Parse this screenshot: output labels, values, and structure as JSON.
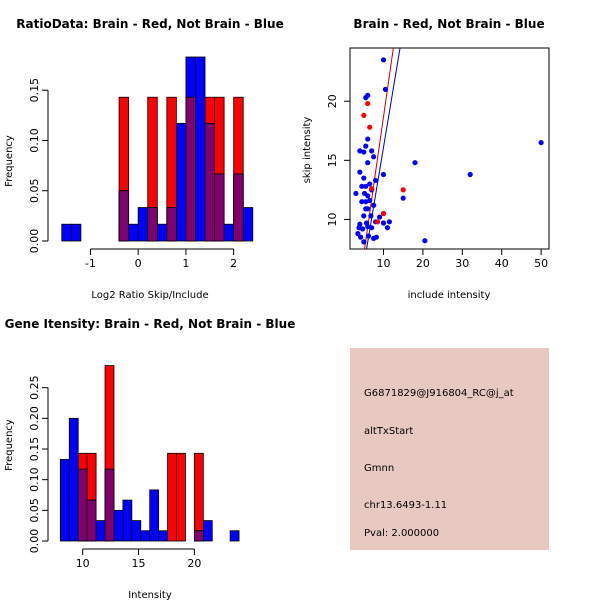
{
  "colors": {
    "red": "#ff0000",
    "blue": "#0000ff",
    "overlap": "#80006e",
    "panel_bg": "#e8c9c1",
    "pval": "#b00000",
    "line_red": "#cc0000",
    "line_blue": "#0000aa"
  },
  "chart_data": [
    {
      "type": "bar",
      "title": "RatioData: Brain - Red, Not Brain - Blue",
      "xlabel": "Log2 Ratio Skip/Include",
      "ylabel": "Frequency",
      "xlim": [
        -1.7,
        2.3
      ],
      "ylim": [
        0,
        0.183
      ],
      "xticks": [
        -1,
        0,
        1,
        2
      ],
      "yticks": [
        0.0,
        0.05,
        0.1,
        0.15
      ],
      "ytick_labels": [
        "0.00",
        "0.05",
        "0.10",
        "0.15"
      ],
      "bin_width": 0.2,
      "series": [
        {
          "name": "Brain",
          "color": "red",
          "bins": [
            {
              "x0": -0.4,
              "v": 0.143
            },
            {
              "x0": 0.2,
              "v": 0.143
            },
            {
              "x0": 0.6,
              "v": 0.143
            },
            {
              "x0": 1.0,
              "v": 0.143
            },
            {
              "x0": 1.4,
              "v": 0.143
            },
            {
              "x0": 1.6,
              "v": 0.143
            },
            {
              "x0": 2.0,
              "v": 0.143
            }
          ]
        },
        {
          "name": "Not Brain",
          "color": "blue",
          "bins": [
            {
              "x0": -1.6,
              "v": 0.0167
            },
            {
              "x0": -1.4,
              "v": 0.0167
            },
            {
              "x0": -0.4,
              "v": 0.05
            },
            {
              "x0": -0.2,
              "v": 0.0167
            },
            {
              "x0": 0.0,
              "v": 0.0333
            },
            {
              "x0": 0.2,
              "v": 0.0333
            },
            {
              "x0": 0.4,
              "v": 0.0167
            },
            {
              "x0": 0.6,
              "v": 0.0333
            },
            {
              "x0": 0.8,
              "v": 0.117
            },
            {
              "x0": 1.0,
              "v": 0.183
            },
            {
              "x0": 1.2,
              "v": 0.183
            },
            {
              "x0": 1.4,
              "v": 0.117
            },
            {
              "x0": 1.6,
              "v": 0.0667
            },
            {
              "x0": 1.8,
              "v": 0.0167
            },
            {
              "x0": 2.0,
              "v": 0.0667
            },
            {
              "x0": 2.2,
              "v": 0.0333
            }
          ]
        }
      ]
    },
    {
      "type": "scatter",
      "title": "Brain - Red, Not Brain - Blue",
      "xlabel": "include intensity",
      "ylabel": "skip intensity",
      "xlim": [
        1.5,
        52
      ],
      "ylim": [
        7.5,
        24.5
      ],
      "xticks": [
        10,
        20,
        30,
        40,
        50
      ],
      "yticks": [
        10,
        15,
        20
      ],
      "series": [
        {
          "name": "Brain",
          "color": "red",
          "points": [
            [
              5,
              18.8
            ],
            [
              6,
              19.8
            ],
            [
              6.5,
              17.8
            ],
            [
              7,
              12.6
            ],
            [
              8.5,
              9.8
            ],
            [
              10,
              10.5
            ],
            [
              15,
              12.5
            ]
          ]
        },
        {
          "name": "Not Brain",
          "color": "blue",
          "points": [
            [
              3,
              12.2
            ],
            [
              3.5,
              8.8
            ],
            [
              3.8,
              9.3
            ],
            [
              4,
              14
            ],
            [
              4,
              15.8
            ],
            [
              4,
              9.6
            ],
            [
              4.2,
              8.5
            ],
            [
              4.5,
              12.8
            ],
            [
              4.5,
              11.5
            ],
            [
              4.7,
              9.2
            ],
            [
              5,
              15.7
            ],
            [
              5,
              13.5
            ],
            [
              5,
              10.3
            ],
            [
              5,
              8.1
            ],
            [
              5.2,
              12.2
            ],
            [
              5.5,
              20.3
            ],
            [
              5.5,
              16.2
            ],
            [
              5.5,
              12.8
            ],
            [
              5.5,
              11.5
            ],
            [
              5.5,
              10.9
            ],
            [
              5.7,
              9.7
            ],
            [
              6,
              20.5
            ],
            [
              6,
              16.8
            ],
            [
              6,
              14.8
            ],
            [
              6,
              12
            ],
            [
              6,
              10.9
            ],
            [
              6,
              9.4
            ],
            [
              6.2,
              8.6
            ],
            [
              6.5,
              13
            ],
            [
              6.5,
              11.6
            ],
            [
              6.8,
              10.3
            ],
            [
              7,
              15.8
            ],
            [
              7,
              12.5
            ],
            [
              7,
              9.3
            ],
            [
              7.5,
              15.3
            ],
            [
              7.5,
              11.2
            ],
            [
              7.5,
              8.4
            ],
            [
              8,
              13.3
            ],
            [
              8,
              9.8
            ],
            [
              8.2,
              8.5
            ],
            [
              9,
              10.2
            ],
            [
              10,
              23.5
            ],
            [
              10,
              13.8
            ],
            [
              10,
              10.5
            ],
            [
              10,
              9.7
            ],
            [
              10.5,
              21
            ],
            [
              11,
              9.3
            ],
            [
              11.5,
              9.8
            ],
            [
              15,
              11.8
            ],
            [
              18,
              14.8
            ],
            [
              20.5,
              8.2
            ],
            [
              32,
              13.8
            ],
            [
              50,
              16.5
            ]
          ]
        }
      ],
      "fit_lines": [
        {
          "name": "Brain fit",
          "color": "line_red",
          "from": [
            5.2,
            7.5
          ],
          "to": [
            12.5,
            24.5
          ]
        },
        {
          "name": "Not Brain fit",
          "color": "line_blue",
          "from": [
            5.7,
            7.5
          ],
          "to": [
            14.2,
            24.5
          ]
        }
      ]
    },
    {
      "type": "bar",
      "title": "Gene Itensity: Brain - Red, Not Brain - Blue",
      "xlabel": "Intensity",
      "ylabel": "Frequency",
      "xlim": [
        7.7,
        24.8
      ],
      "ylim": [
        0,
        0.3
      ],
      "xticks": [
        10,
        15,
        20
      ],
      "yticks": [
        0.0,
        0.05,
        0.1,
        0.15,
        0.2,
        0.25
      ],
      "ytick_labels": [
        "0.00",
        "0.05",
        "0.10",
        "0.15",
        "0.20",
        "0.25"
      ],
      "bin_width": 0.8,
      "series": [
        {
          "name": "Brain",
          "color": "red",
          "bins": [
            {
              "x0": 9.6,
              "v": 0.143
            },
            {
              "x0": 10.4,
              "v": 0.143
            },
            {
              "x0": 12.0,
              "v": 0.286
            },
            {
              "x0": 17.6,
              "v": 0.143
            },
            {
              "x0": 18.4,
              "v": 0.143
            },
            {
              "x0": 20.0,
              "v": 0.143
            }
          ]
        },
        {
          "name": "Not Brain",
          "color": "blue",
          "bins": [
            {
              "x0": 8.0,
              "v": 0.133
            },
            {
              "x0": 8.8,
              "v": 0.2
            },
            {
              "x0": 9.6,
              "v": 0.117
            },
            {
              "x0": 10.4,
              "v": 0.0667
            },
            {
              "x0": 11.2,
              "v": 0.0333
            },
            {
              "x0": 12.0,
              "v": 0.117
            },
            {
              "x0": 12.8,
              "v": 0.05
            },
            {
              "x0": 13.6,
              "v": 0.0667
            },
            {
              "x0": 14.4,
              "v": 0.0333
            },
            {
              "x0": 15.2,
              "v": 0.0167
            },
            {
              "x0": 16.0,
              "v": 0.0833
            },
            {
              "x0": 16.8,
              "v": 0.0167
            },
            {
              "x0": 20.0,
              "v": 0.0167
            },
            {
              "x0": 20.8,
              "v": 0.0333
            },
            {
              "x0": 23.2,
              "v": 0.0167
            }
          ]
        }
      ]
    }
  ],
  "info_panel": {
    "probe_id": "G6871829@J916804_RC@j_at",
    "event_type": "altTxStart",
    "gene": "Gmnn",
    "location": "chr13.6493-1.11",
    "pval": "Pval: 2.000000"
  }
}
